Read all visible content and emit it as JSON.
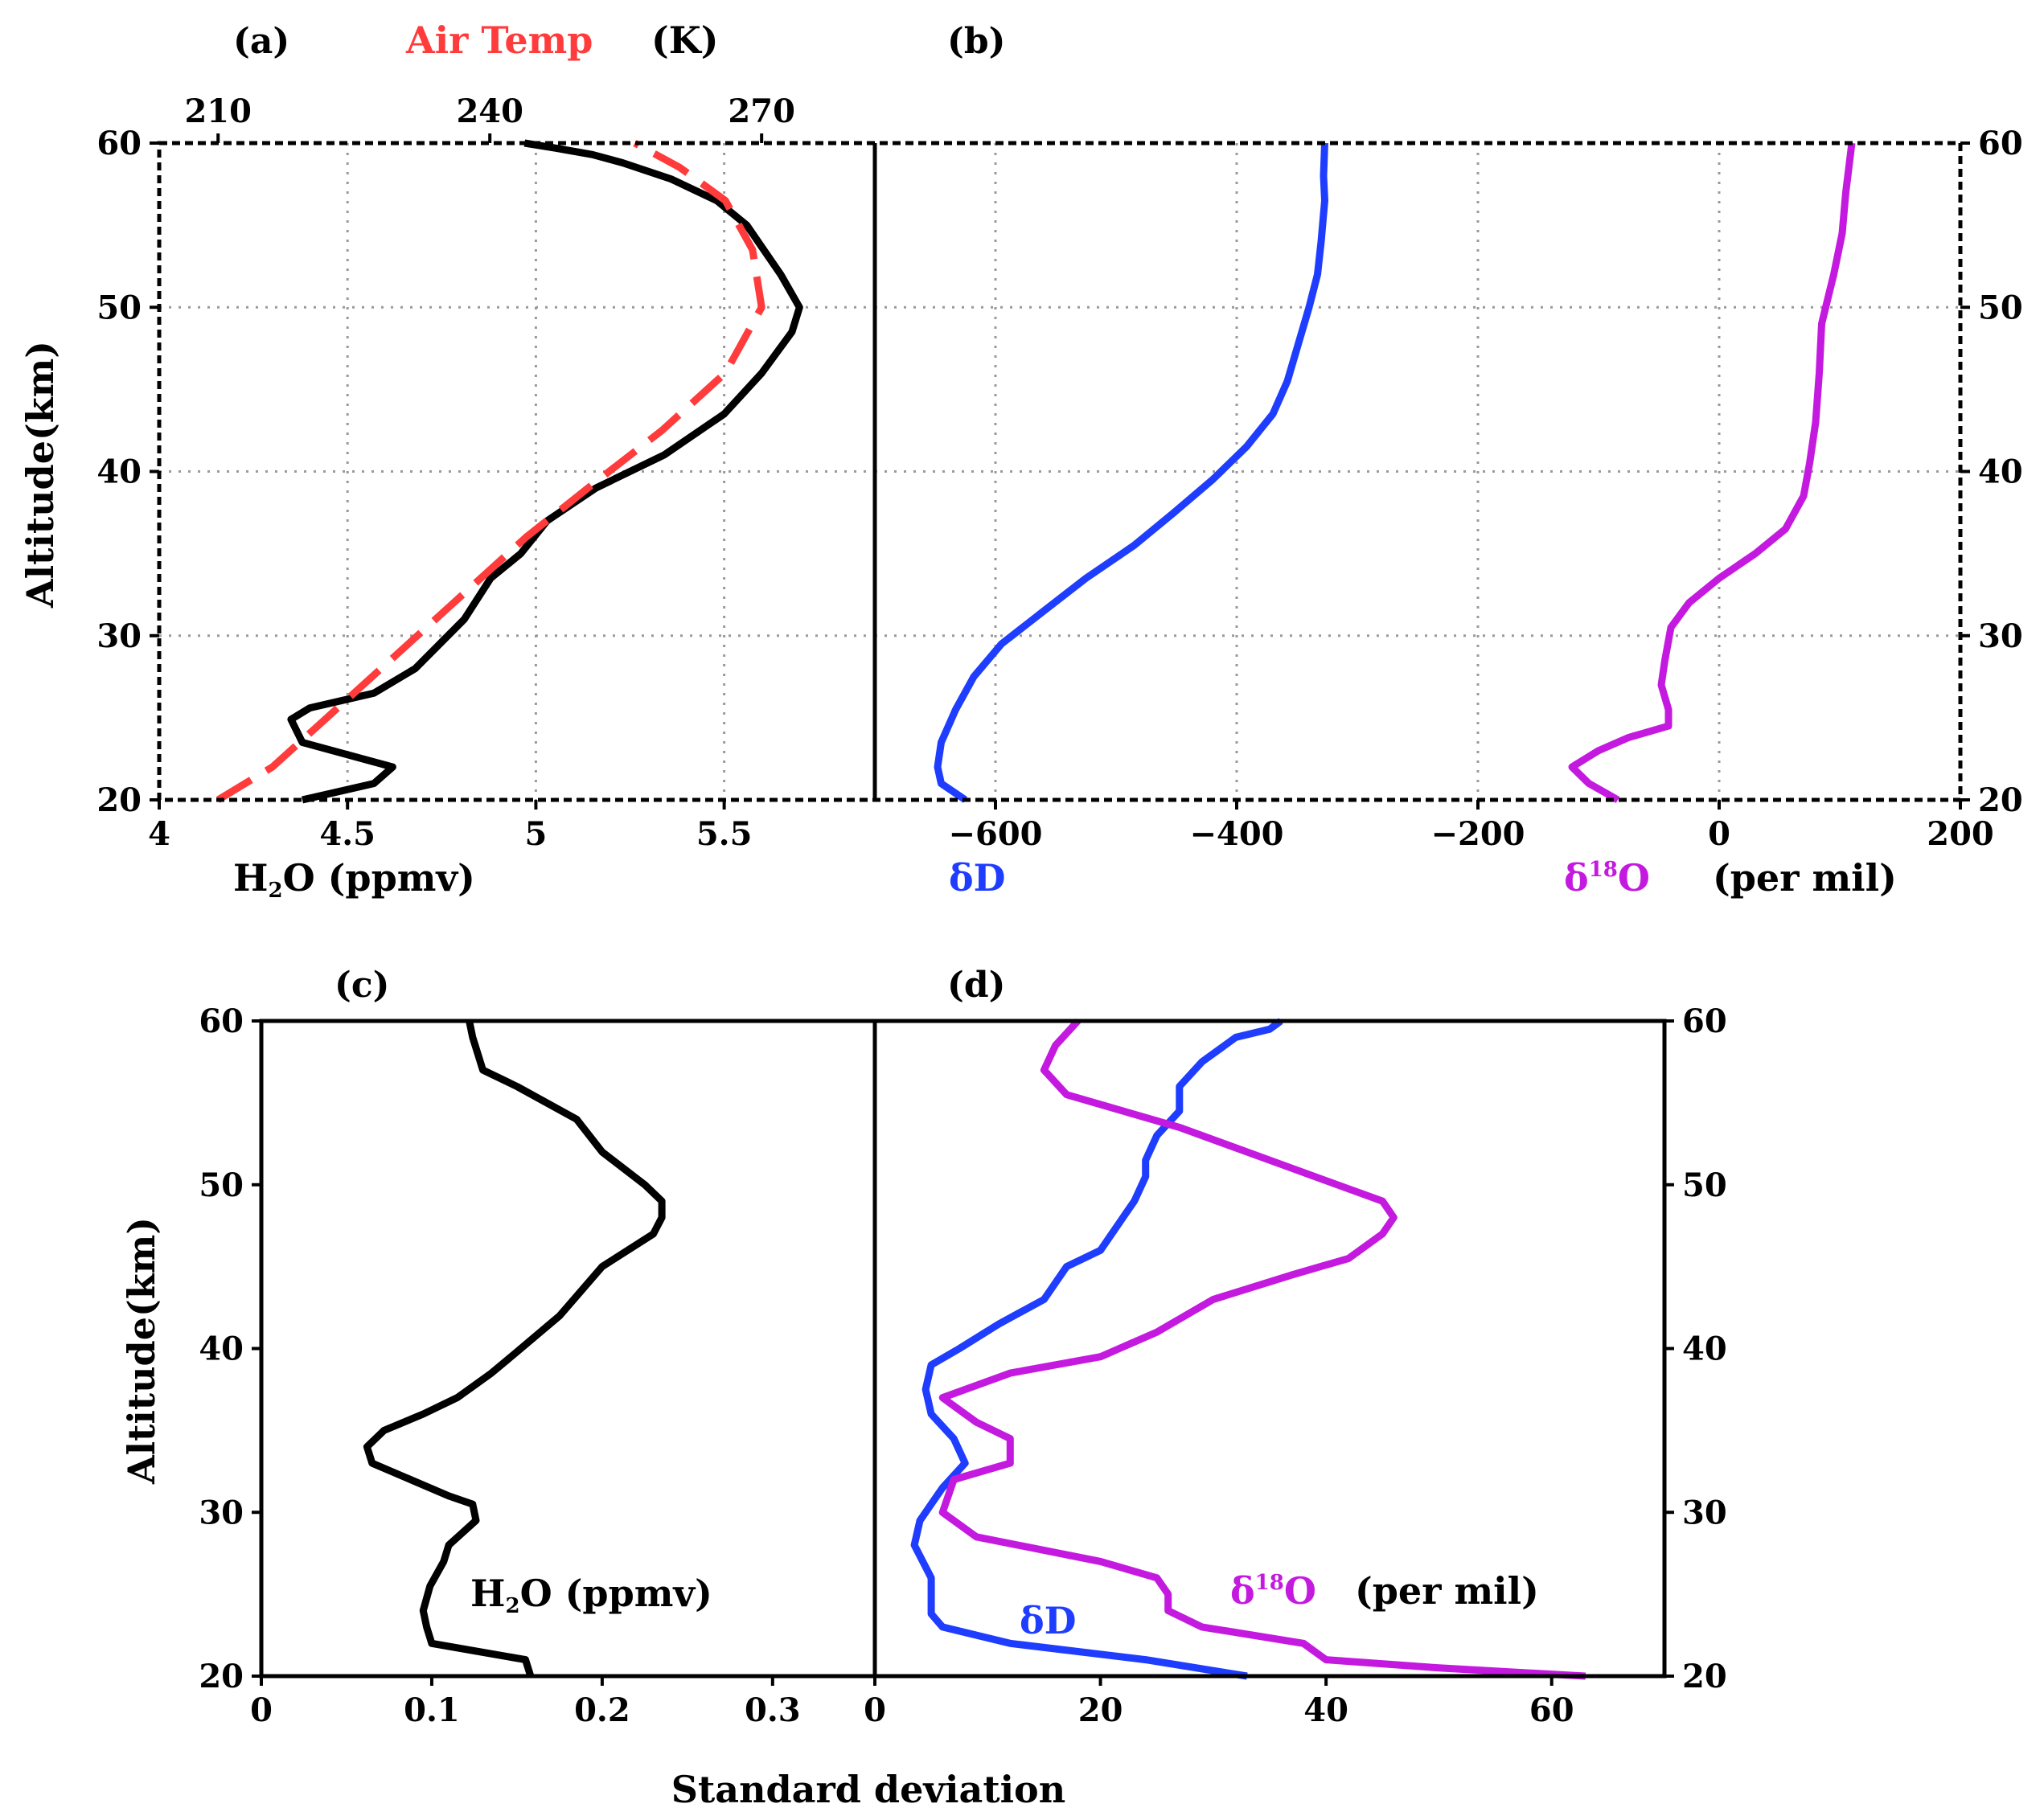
{
  "chart_data": [
    {
      "panel": "(a)",
      "type": "line",
      "ylabel": "Altitude(km)",
      "ylim": [
        20,
        60
      ],
      "yticks": [
        "20",
        "30",
        "40",
        "50",
        "60"
      ],
      "xlabel": "H₂O (ppmv)",
      "xlabel_main": "H",
      "xlabel_sub": "2",
      "xlabel_rest": "O  (ppmv)",
      "xlim": [
        4,
        5.9
      ],
      "xticks": [
        "4",
        "4.5",
        "5",
        "5.5"
      ],
      "top_axis": {
        "label": "Air Temp",
        "unit": "(K)",
        "range": [
          203.5,
          282.5
        ],
        "ticks": [
          "210",
          "240",
          "270"
        ]
      },
      "grid": true,
      "series": [
        {
          "name": "H2O",
          "color": "#000000",
          "style": "solid",
          "axis": "bottom",
          "x": [
            4.38,
            4.57,
            4.62,
            4.38,
            4.35,
            4.4,
            4.57,
            4.68,
            4.81,
            4.88,
            4.96,
            5.03,
            5.16,
            5.34,
            5.5,
            5.6,
            5.68,
            5.7,
            5.65,
            5.56,
            5.48,
            5.36,
            5.23,
            5.15,
            5.05,
            4.97
          ],
          "y": [
            20,
            21,
            22,
            23.5,
            24.9,
            25.6,
            26.5,
            28,
            31,
            33.5,
            35,
            37,
            39,
            41,
            43.5,
            46,
            48.5,
            50,
            52,
            55,
            56.5,
            57.8,
            58.8,
            59.3,
            59.7,
            60
          ]
        },
        {
          "name": "Air Temp",
          "color": "#ff3b3b",
          "style": "dashed",
          "axis": "top",
          "x": [
            210,
            216,
            222,
            229,
            236,
            244,
            252,
            259,
            266,
            270,
            269,
            266,
            261,
            256
          ],
          "y": [
            20,
            22,
            25,
            28.5,
            32,
            36,
            39.5,
            42.5,
            46,
            50,
            53.5,
            56.5,
            58.5,
            60
          ]
        }
      ]
    },
    {
      "panel": "(b)",
      "type": "line",
      "ylim": [
        20,
        60
      ],
      "yticks": [
        "20",
        "30",
        "40",
        "50",
        "60"
      ],
      "xlim": [
        -700,
        200
      ],
      "xticks": [
        "-600",
        "-400",
        "-200",
        "0",
        "200"
      ],
      "xlabel": "(per mil)",
      "grid": true,
      "series": [
        {
          "name": "δD",
          "color": "#1f3dff",
          "label": "δD",
          "x": [
            -625,
            -645,
            -648,
            -645,
            -633,
            -618,
            -595,
            -560,
            -525,
            -485,
            -452,
            -420,
            -392,
            -370,
            -358,
            -350,
            -340,
            -333,
            -330,
            -327,
            -328,
            -327
          ],
          "y": [
            20,
            21,
            22,
            23.5,
            25.5,
            27.5,
            29.5,
            31.5,
            33.5,
            35.5,
            37.5,
            39.5,
            41.5,
            43.5,
            45.5,
            47.5,
            50,
            52,
            54,
            56.5,
            58,
            60
          ]
        },
        {
          "name": "δ18O",
          "color": "#c41ae0",
          "label": "δ",
          "label_sup": "18",
          "label_rest": "O",
          "x": [
            -84,
            -108,
            -122,
            -100,
            -75,
            -42,
            -42,
            -48,
            -45,
            -40,
            -25,
            0,
            30,
            55,
            70,
            75,
            80,
            83,
            85,
            95,
            102,
            105,
            110
          ],
          "y": [
            20,
            21,
            22,
            23,
            23.8,
            24.5,
            25.5,
            27,
            28.5,
            30.5,
            32,
            33.5,
            35,
            36.5,
            38.5,
            40.5,
            43,
            46,
            49,
            52,
            54.5,
            57,
            60
          ]
        }
      ]
    },
    {
      "panel": "(c)",
      "type": "line",
      "ylabel": "Altitude(km)",
      "ylim": [
        20,
        60
      ],
      "yticks": [
        "20",
        "30",
        "40",
        "50",
        "60"
      ],
      "xlim": [
        0,
        0.36
      ],
      "xticks": [
        "0",
        "0.1",
        "0.2",
        "0.3"
      ],
      "inline_label_main": "H",
      "inline_label_sub": "2",
      "inline_label_rest": "O  (ppmv)",
      "series": [
        {
          "name": "H2O SD",
          "color": "#000000",
          "x": [
            0.158,
            0.155,
            0.1,
            0.097,
            0.095,
            0.099,
            0.107,
            0.11,
            0.126,
            0.124,
            0.11,
            0.065,
            0.062,
            0.072,
            0.095,
            0.115,
            0.135,
            0.15,
            0.175,
            0.2,
            0.23,
            0.235,
            0.235,
            0.225,
            0.2,
            0.185,
            0.15,
            0.13,
            0.127,
            0.124,
            0.122
          ],
          "y": [
            20,
            21,
            22,
            23,
            24,
            25.5,
            27,
            28,
            29.5,
            30.5,
            31,
            33,
            34,
            35,
            36,
            37,
            38.5,
            39.8,
            42,
            45,
            47,
            48,
            49,
            50,
            52,
            54,
            56,
            57,
            58,
            59,
            60
          ]
        }
      ]
    },
    {
      "panel": "(d)",
      "type": "line",
      "ylim": [
        20,
        60
      ],
      "yticks": [
        "20",
        "30",
        "40",
        "50",
        "60"
      ],
      "xlim": [
        0,
        70
      ],
      "xticks": [
        "0",
        "20",
        "40",
        "60"
      ],
      "xlabel": "Standard deviation",
      "right_label": "(per mil)",
      "series": [
        {
          "name": "δD SD",
          "color": "#1f3dff",
          "label": "δD",
          "x": [
            33,
            24,
            12,
            6,
            5,
            5,
            5,
            3.5,
            4,
            5,
            6,
            8,
            7,
            5,
            4.5,
            5,
            7.5,
            11,
            15,
            17,
            20,
            22,
            23,
            24,
            24,
            25,
            27,
            27,
            29,
            32,
            35,
            36
          ],
          "y": [
            20,
            21,
            22,
            23,
            23.8,
            24.5,
            26,
            28,
            29.5,
            30.5,
            31.5,
            33,
            34.5,
            36,
            37.5,
            39,
            40,
            41.5,
            43,
            45,
            46,
            48,
            49,
            50.5,
            51.5,
            53,
            54.5,
            56,
            57.5,
            59,
            59.5,
            60
          ]
        },
        {
          "name": "δ18O SD",
          "color": "#c41ae0",
          "label": "δ",
          "label_sup": "18",
          "label_rest": "O",
          "x": [
            63,
            50,
            40,
            38,
            29,
            26,
            26,
            25,
            20,
            9,
            6,
            7,
            12,
            12,
            9,
            7,
            6,
            12,
            20,
            25,
            30,
            37,
            42,
            45,
            46,
            45,
            41,
            35,
            27,
            17,
            15,
            16,
            18
          ],
          "y": [
            20,
            20.5,
            21,
            22,
            23,
            24,
            25,
            26,
            27,
            28.5,
            30,
            32,
            33,
            34.5,
            35.5,
            36.5,
            37,
            38.5,
            39.5,
            41,
            43,
            44.5,
            45.5,
            47,
            48,
            49,
            50,
            51.5,
            53.5,
            55.5,
            57,
            58.5,
            60
          ]
        }
      ]
    }
  ]
}
